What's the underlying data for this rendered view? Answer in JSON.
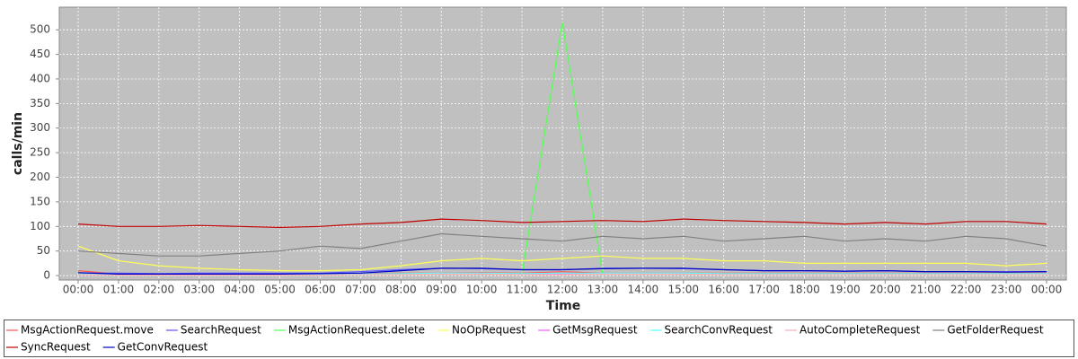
{
  "chart_data": {
    "type": "line",
    "x_label": "Time",
    "y_label": "calls/min",
    "categories": [
      "00:00",
      "01:00",
      "02:00",
      "03:00",
      "04:00",
      "05:00",
      "06:00",
      "07:00",
      "08:00",
      "09:00",
      "10:00",
      "11:00",
      "12:00",
      "13:00",
      "14:00",
      "15:00",
      "16:00",
      "17:00",
      "18:00",
      "19:00",
      "20:00",
      "21:00",
      "22:00",
      "23:00",
      "00:00"
    ],
    "ylim": [
      -9,
      546
    ],
    "yticks": [
      0,
      50,
      100,
      150,
      200,
      250,
      300,
      350,
      400,
      450,
      500
    ],
    "grid": true,
    "legend": "bottom",
    "series": [
      {
        "name": "MsgActionRequest.move",
        "color": "#ff5555",
        "values": [
          10,
          3,
          2,
          2,
          2,
          2,
          3,
          4,
          5,
          5,
          6,
          5,
          8,
          5,
          5,
          5,
          5,
          5,
          5,
          5,
          5,
          5,
          5,
          5,
          5
        ]
      },
      {
        "name": "SearchRequest",
        "color": "#5555ff",
        "values": [
          5,
          5,
          4,
          5,
          5,
          5,
          5,
          8,
          12,
          15,
          14,
          12,
          12,
          15,
          15,
          14,
          12,
          10,
          10,
          9,
          10,
          8,
          8,
          8,
          8
        ]
      },
      {
        "name": "MsgActionRequest.delete",
        "color": "#55ff55",
        "values": [
          3,
          2,
          2,
          2,
          2,
          2,
          2,
          3,
          3,
          3,
          4,
          3,
          515,
          3,
          3,
          3,
          3,
          3,
          3,
          3,
          3,
          3,
          3,
          3,
          3
        ]
      },
      {
        "name": "NoOpRequest",
        "color": "#ffff55",
        "values": [
          60,
          30,
          20,
          15,
          12,
          10,
          10,
          12,
          20,
          30,
          35,
          30,
          35,
          40,
          35,
          35,
          30,
          30,
          25,
          25,
          25,
          25,
          25,
          20,
          25
        ]
      },
      {
        "name": "GetMsgRequest",
        "color": "#ff55ff",
        "values": [
          2,
          2,
          2,
          2,
          2,
          2,
          2,
          3,
          3,
          4,
          4,
          3,
          3,
          4,
          4,
          4,
          3,
          3,
          3,
          3,
          3,
          3,
          3,
          3,
          3
        ]
      },
      {
        "name": "SearchConvRequest",
        "color": "#55ffff",
        "values": [
          3,
          2,
          2,
          2,
          2,
          2,
          2,
          3,
          4,
          5,
          5,
          4,
          5,
          5,
          5,
          5,
          4,
          4,
          4,
          4,
          4,
          4,
          4,
          4,
          4
        ]
      },
      {
        "name": "AutoCompleteRequest",
        "color": "#ffafaf",
        "values": [
          2,
          1,
          1,
          1,
          1,
          1,
          1,
          2,
          2,
          3,
          3,
          2,
          2,
          3,
          3,
          3,
          2,
          2,
          2,
          2,
          2,
          2,
          2,
          2,
          2
        ]
      },
      {
        "name": "GetFolderRequest",
        "color": "#808080",
        "values": [
          50,
          45,
          40,
          40,
          45,
          50,
          60,
          55,
          70,
          85,
          80,
          75,
          70,
          80,
          75,
          80,
          70,
          75,
          80,
          70,
          75,
          70,
          80,
          75,
          60
        ]
      },
      {
        "name": "SyncRequest",
        "color": "#c00000",
        "values": [
          105,
          100,
          100,
          102,
          100,
          98,
          100,
          105,
          108,
          115,
          112,
          108,
          110,
          112,
          110,
          115,
          112,
          110,
          108,
          105,
          108,
          105,
          110,
          110,
          105
        ]
      },
      {
        "name": "GetConvRequest",
        "color": "#0000c0",
        "values": [
          6,
          3,
          3,
          3,
          3,
          3,
          4,
          5,
          10,
          15,
          15,
          12,
          12,
          14,
          15,
          15,
          12,
          10,
          10,
          9,
          10,
          8,
          8,
          7,
          8
        ]
      }
    ]
  }
}
